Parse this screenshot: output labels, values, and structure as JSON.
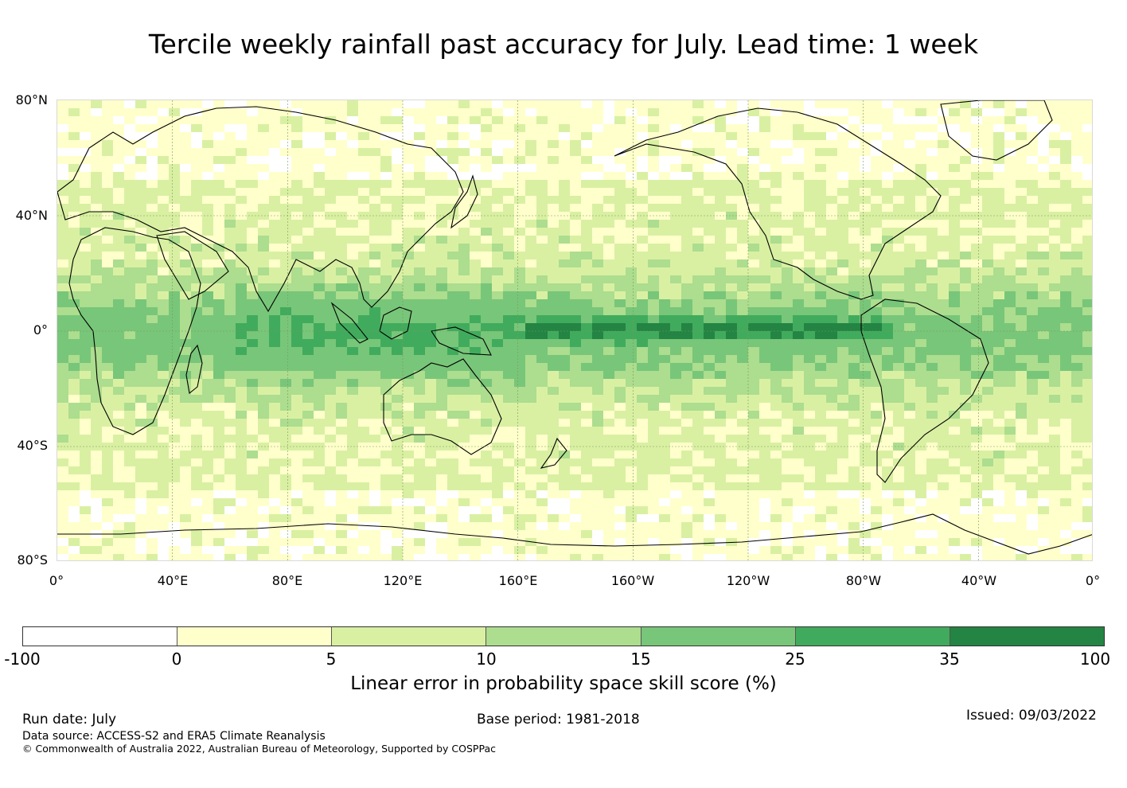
{
  "title": "Tercile weekly rainfall past accuracy for July. Lead time: 1 week",
  "map": {
    "lat_ticks": [
      "80°N",
      "40°N",
      "0°",
      "40°S",
      "80°S"
    ],
    "lon_ticks": [
      "0°",
      "40°E",
      "80°E",
      "120°E",
      "160°E",
      "160°W",
      "120°W",
      "80°W",
      "40°W",
      "0°"
    ],
    "colors": {
      "land_outline": "#000000",
      "gridline": "#7a9a5a"
    }
  },
  "colorbar": {
    "ticks": [
      "-100",
      "0",
      "5",
      "10",
      "15",
      "25",
      "35",
      "100"
    ],
    "colors": [
      "#ffffff",
      "#ffffcc",
      "#d9f0a3",
      "#addd8e",
      "#78c679",
      "#41ab5d",
      "#238443"
    ],
    "label": "Linear error in probability space skill score (%)"
  },
  "footer": {
    "run_date": "Run date: July",
    "base_period": "Base period: 1981-2018",
    "issued": "Issued: 09/03/2022",
    "data_source": "Data source: ACCESS-S2 and ERA5 Climate Reanalysis",
    "copyright": "© Commonwealth of Australia 2022, Australian Bureau of Meteorology, Supported by COSPPac"
  }
}
